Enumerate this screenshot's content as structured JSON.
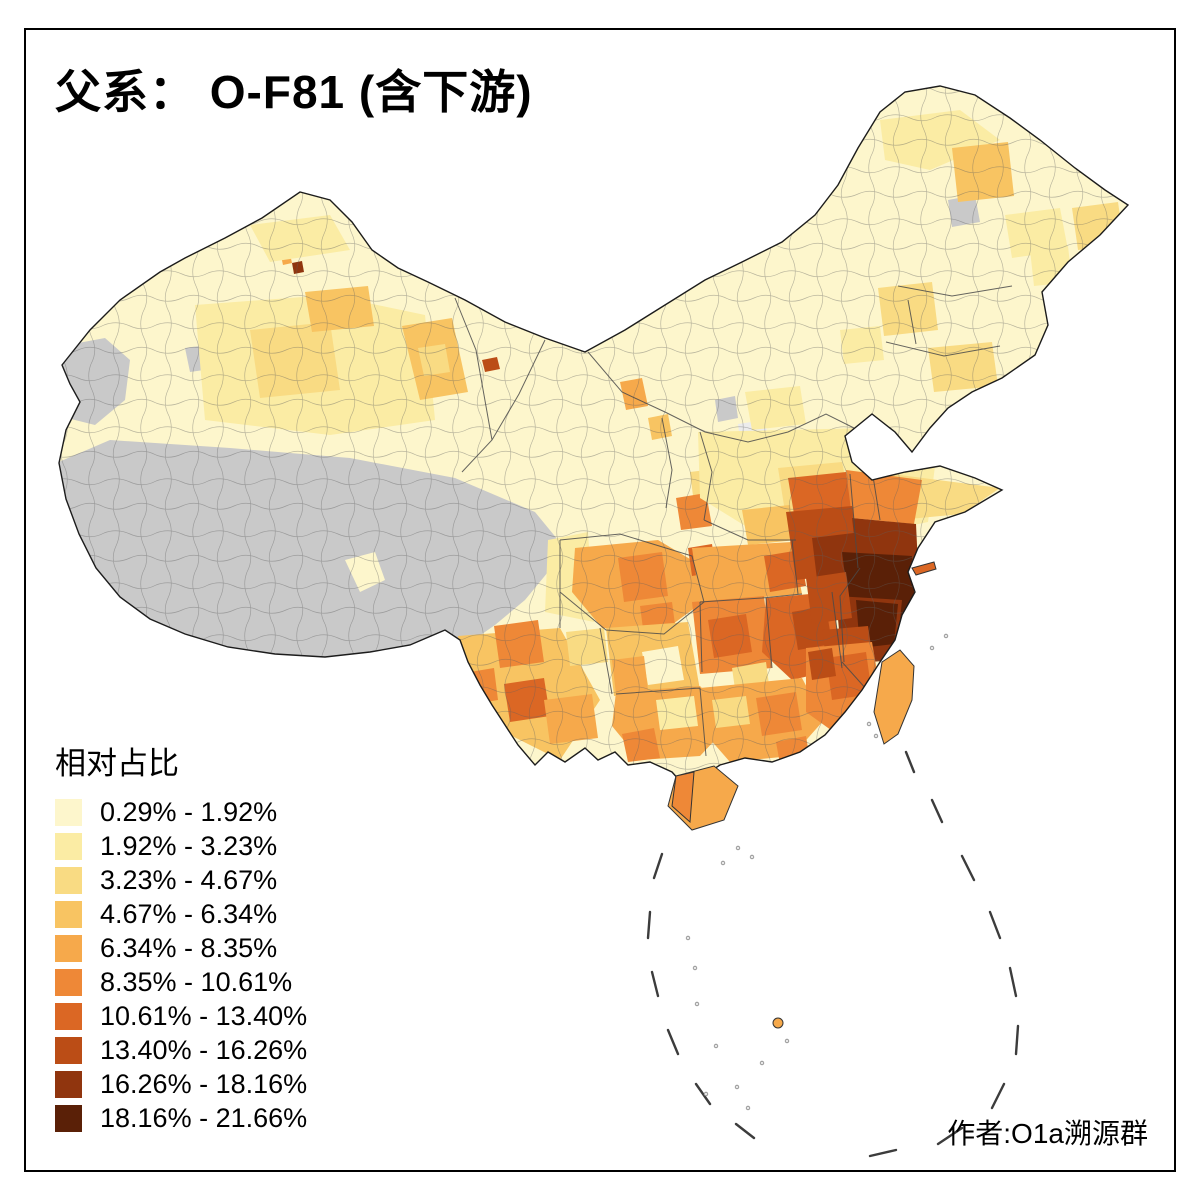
{
  "title": "父系： O-F81 (含下游)",
  "legend": {
    "title": "相对占比",
    "classes": [
      {
        "label": "0.29% - 1.92%",
        "color": "#FDF6CC"
      },
      {
        "label": "1.92% - 3.23%",
        "color": "#FBECA4"
      },
      {
        "label": "3.23% - 4.67%",
        "color": "#F9DB83"
      },
      {
        "label": "4.67% - 6.34%",
        "color": "#F8C462"
      },
      {
        "label": "6.34% - 8.35%",
        "color": "#F6A94B"
      },
      {
        "label": "8.35% - 10.61%",
        "color": "#EE8837"
      },
      {
        "label": "10.61% - 13.40%",
        "color": "#DB6724"
      },
      {
        "label": "13.40% - 16.26%",
        "color": "#BB4D16"
      },
      {
        "label": "16.26% - 18.16%",
        "color": "#90350E"
      },
      {
        "label": "18.16% - 21.66%",
        "color": "#5A2007"
      }
    ]
  },
  "credit": "作者:O1a溯源群",
  "map": {
    "region": "China prefecture-level choropleth",
    "type": "choropleth",
    "no_data_color": "#C9C9C9",
    "outline_color": "#1c1c1c"
  }
}
